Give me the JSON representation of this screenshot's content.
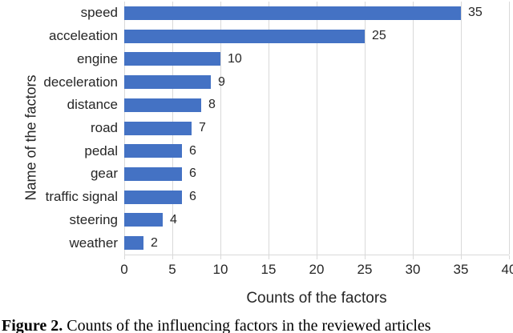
{
  "figure": {
    "caption_label": "Figure 2.",
    "caption_text": " Counts of the influencing factors in the reviewed articles"
  },
  "chart_data": {
    "type": "bar",
    "orientation": "horizontal",
    "title": "",
    "categories": [
      "speed",
      "acceleation",
      "engine",
      "deceleration",
      "distance",
      "road",
      "pedal",
      "gear",
      "traffic signal",
      "steering",
      "weather"
    ],
    "values": [
      35,
      25,
      10,
      9,
      8,
      7,
      6,
      6,
      6,
      4,
      2
    ],
    "data_labels": [
      "35",
      "25",
      "10",
      "9",
      "8",
      "7",
      "6",
      "6",
      "6",
      "4",
      "2"
    ],
    "xlabel": "Counts of the factors",
    "ylabel": "Name of the factors",
    "xlim": [
      0,
      40
    ],
    "xticks": [
      0,
      5,
      10,
      15,
      20,
      25,
      30,
      35,
      40
    ],
    "grid": "vertical-major",
    "legend": "none",
    "bar_color": "#4472C4",
    "gridline_color": "#d9d9d9",
    "text_color": "#262626"
  }
}
